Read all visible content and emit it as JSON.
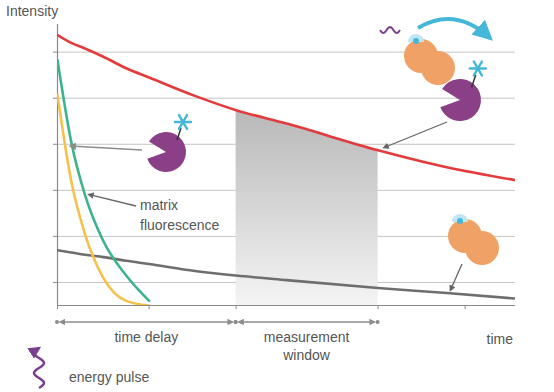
{
  "chart_data": {
    "type": "line",
    "y_label": "Intensity",
    "x_label": "time",
    "x": [
      0,
      0.3,
      0.6,
      1,
      1.5,
      2,
      3,
      3.9,
      5,
      7,
      8.5,
      10
    ],
    "series": [
      {
        "color": "#e53a3c",
        "values": [
          5.87,
          5.7,
          5.58,
          5.4,
          5.15,
          4.95,
          4.55,
          4.24,
          3.95,
          3.37,
          3.0,
          2.72
        ]
      },
      {
        "color": "#6e6e6e",
        "values": [
          1.2,
          1.15,
          1.1,
          1.05,
          0.97,
          0.9,
          0.75,
          0.65,
          0.55,
          0.38,
          0.27,
          0.15
        ]
      },
      {
        "color": "#f5c14e",
        "values": [
          4.57,
          2.7,
          1.55,
          0.6,
          0.1,
          0,
          null,
          null,
          null,
          null,
          null,
          null
        ]
      },
      {
        "color": "#3db38c",
        "values": [
          5.33,
          3.55,
          2.4,
          1.4,
          0.65,
          0.1,
          null,
          null,
          null,
          null,
          null,
          null
        ]
      }
    ],
    "xlim": [
      0,
      10
    ],
    "ylim": [
      0,
      6.1
    ],
    "xticks": [
      0,
      2,
      3.9,
      7,
      8.9
    ],
    "yticks": [
      0.5,
      1.5,
      2.5,
      3.5,
      4.5,
      5.5
    ],
    "grid": true,
    "tick_labels": false,
    "annotations": [
      {
        "text": "matrix fluorescence",
        "series": 3,
        "x": 0.6
      },
      {
        "text": "time delay",
        "x": [
          0,
          3.9
        ]
      },
      {
        "text": "measurement window",
        "x": [
          3.9,
          7
        ],
        "series": 0
      },
      {
        "text": "energy pulse",
        "x": 0
      }
    ]
  }
}
